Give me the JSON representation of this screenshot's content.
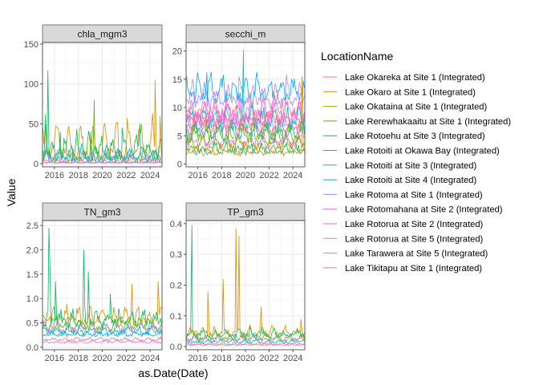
{
  "chart_data": {
    "type": "line",
    "xlabel": "as.Date(Date)",
    "ylabel": "Value",
    "x_range": [
      "2015-01-01",
      "2024-12-31"
    ],
    "x_ticks": [
      "2016",
      "2018",
      "2020",
      "2022",
      "2024"
    ],
    "grid": true,
    "legend": {
      "title": "LocationName",
      "placement": "right",
      "entries": [
        {
          "name": "Lake Okareka at Site 1 (Integrated)",
          "color": "#F8766D"
        },
        {
          "name": "Lake Okaro at Site 1 (Integrated)",
          "color": "#DB8E00"
        },
        {
          "name": "Lake Okataina at Site 1 (Integrated)",
          "color": "#AEA200"
        },
        {
          "name": "Lake Rerewhakaaitu at Site 1 (Integrated)",
          "color": "#64B200"
        },
        {
          "name": "Lake Rotoehu at Site 3 (Integrated)",
          "color": "#00BD5C"
        },
        {
          "name": "Lake Rotoiti at Okawa Bay (Integrated)",
          "color": "#00C1A7"
        },
        {
          "name": "Lake Rotoiti at Site 3 (Integrated)",
          "color": "#00BADE"
        },
        {
          "name": "Lake Rotoiti at Site 4 (Integrated)",
          "color": "#00A6FF"
        },
        {
          "name": "Lake Rotoma at Site 1 (Integrated)",
          "color": "#B385FF"
        },
        {
          "name": "Lake Rotomahana at Site 2 (Integrated)",
          "color": "#EF67EB"
        },
        {
          "name": "Lake Rotorua at Site 2 (Integrated)",
          "color": "#FF63B6"
        },
        {
          "name": "Lake Rotorua at Site 5 (Integrated)",
          "color": "#C77CFF"
        },
        {
          "name": "Lake Tarawera at Site 5 (Integrated)",
          "color": "#E76BF3"
        },
        {
          "name": "Lake Tikitapu at Site 1 (Integrated)",
          "color": "#FF6C91"
        }
      ]
    },
    "panels": [
      {
        "title": "chla_mgm3",
        "ylim": [
          -4,
          152
        ],
        "y_ticks": [
          0,
          50,
          100,
          150
        ],
        "typical": [
          {
            "series": "Lake Okaro at Site 1 (Integrated)",
            "base": 12,
            "amp": 35,
            "noise": 8
          },
          {
            "series": "Lake Rotoehu at Site 3 (Integrated)",
            "base": 8,
            "amp": 22,
            "noise": 6
          },
          {
            "series": "Lake Rerewhakaaitu at Site 1 (Integrated)",
            "base": 5,
            "amp": 10,
            "noise": 4
          },
          {
            "series": "Lake Rotorua at Site 5 (Integrated)",
            "base": 6,
            "amp": 8,
            "noise": 4
          },
          {
            "series": "Lake Rotoiti at Okawa Bay (Integrated)",
            "base": 6,
            "amp": 12,
            "noise": 5
          },
          {
            "series": "Lake Okareka at Site 1 (Integrated)",
            "base": 2,
            "amp": 2,
            "noise": 1
          },
          {
            "series": "Lake Tarawera at Site 5 (Integrated)",
            "base": 1,
            "amp": 1,
            "noise": 0.5
          },
          {
            "series": "Lake Rotoma at Site 1 (Integrated)",
            "base": 1,
            "amp": 1,
            "noise": 0.5
          }
        ],
        "peaks": [
          {
            "series": "Lake Rotoehu at Site 3 (Integrated)",
            "date": "2015-06-15",
            "value": 117
          },
          {
            "series": "Lake Rotoehu at Site 3 (Integrated)",
            "date": "2015-04-01",
            "value": 62
          },
          {
            "series": "Lake Rerewhakaaitu at Site 1 (Integrated)",
            "date": "2019-05-01",
            "value": 80
          },
          {
            "series": "Lake Rerewhakaaitu at Site 1 (Integrated)",
            "date": "2019-01-15",
            "value": 40
          },
          {
            "series": "Lake Rotoehu at Site 3 (Integrated)",
            "date": "2016-07-01",
            "value": 40
          },
          {
            "series": "Lake Okaro at Site 1 (Integrated)",
            "date": "2022-02-01",
            "value": 57
          },
          {
            "series": "Lake Okaro at Site 1 (Integrated)",
            "date": "2024-06-01",
            "value": 105
          },
          {
            "series": "Lake Okaro at Site 1 (Integrated)",
            "date": "2024-11-01",
            "value": 60
          },
          {
            "series": "Lake Rotoehu at Site 3 (Integrated)",
            "date": "2021-09-01",
            "value": 45
          },
          {
            "series": "Lake Rotoehu at Site 3 (Integrated)",
            "date": "2023-03-01",
            "value": 50
          }
        ]
      },
      {
        "title": "secchi_m",
        "ylim": [
          -0.5,
          21.5
        ],
        "y_ticks": [
          0,
          5,
          10,
          15,
          20
        ],
        "typical": [
          {
            "series": "Lake Rotoiti at Site 4 (Integrated)",
            "base": 12,
            "amp": 3,
            "noise": 1.2
          },
          {
            "series": "Lake Rotoma at Site 1 (Integrated)",
            "base": 11,
            "amp": 3,
            "noise": 1.2
          },
          {
            "series": "Lake Rotomahana at Site 2 (Integrated)",
            "base": 8,
            "amp": 3,
            "noise": 1.2
          },
          {
            "series": "Lake Rotorua at Site 2 (Integrated)",
            "base": 8.5,
            "amp": 2.5,
            "noise": 1.2
          },
          {
            "series": "Lake Rotoiti at Site 3 (Integrated)",
            "base": 7,
            "amp": 2.5,
            "noise": 1
          },
          {
            "series": "Lake Tikitapu at Site 1 (Integrated)",
            "base": 7.5,
            "amp": 2,
            "noise": 1
          },
          {
            "series": "Lake Tarawera at Site 5 (Integrated)",
            "base": 6.5,
            "amp": 2,
            "noise": 1
          },
          {
            "series": "Lake Okareka at Site 1 (Integrated)",
            "base": 6,
            "amp": 2,
            "noise": 1
          },
          {
            "series": "Lake Rotoiti at Okawa Bay (Integrated)",
            "base": 5,
            "amp": 2,
            "noise": 1
          },
          {
            "series": "Lake Rerewhakaaitu at Site 1 (Integrated)",
            "base": 4.5,
            "amp": 2,
            "noise": 1
          },
          {
            "series": "Lake Rotorua at Site 5 (Integrated)",
            "base": 3.5,
            "amp": 1.5,
            "noise": 0.8
          },
          {
            "series": "Lake Okataina at Site 1 (Integrated)",
            "base": 3.2,
            "amp": 1.5,
            "noise": 0.8
          },
          {
            "series": "Lake Rotoehu at Site 3 (Integrated)",
            "base": 2.2,
            "amp": 1,
            "noise": 0.6
          },
          {
            "series": "Lake Okaro at Site 1 (Integrated)",
            "base": 2,
            "amp": 1,
            "noise": 0.6
          }
        ],
        "peaks": [
          {
            "series": "Lake Rotoiti at Site 3 (Integrated)",
            "date": "2019-11-01",
            "value": 20.2
          },
          {
            "series": "Lake Okaro at Site 1 (Integrated)",
            "date": "2024-10-01",
            "value": 15.5
          },
          {
            "series": "Lake Rotoiti at Site 4 (Integrated)",
            "date": "2016-10-01",
            "value": 16.2
          }
        ]
      },
      {
        "title": "TN_gm3",
        "ylim": [
          -0.05,
          2.6
        ],
        "y_ticks": [
          0.0,
          0.5,
          1.0,
          1.5,
          2.0,
          2.5
        ],
        "typical": [
          {
            "series": "Lake Okaro at Site 1 (Integrated)",
            "base": 0.55,
            "amp": 0.25,
            "noise": 0.1
          },
          {
            "series": "Lake Rotoehu at Site 3 (Integrated)",
            "base": 0.5,
            "amp": 0.2,
            "noise": 0.1
          },
          {
            "series": "Lake Rerewhakaaitu at Site 1 (Integrated)",
            "base": 0.4,
            "amp": 0.15,
            "noise": 0.08
          },
          {
            "series": "Lake Rotorua at Site 5 (Integrated)",
            "base": 0.35,
            "amp": 0.12,
            "noise": 0.06
          },
          {
            "series": "Lake Rotoiti at Okawa Bay (Integrated)",
            "base": 0.3,
            "amp": 0.1,
            "noise": 0.05
          },
          {
            "series": "Lake Rotoiti at Site 4 (Integrated)",
            "base": 0.25,
            "amp": 0.06,
            "noise": 0.03
          },
          {
            "series": "Lake Okareka at Site 1 (Integrated)",
            "base": 0.15,
            "amp": 0.04,
            "noise": 0.02
          },
          {
            "series": "Lake Tarawera at Site 5 (Integrated)",
            "base": 0.1,
            "amp": 0.03,
            "noise": 0.02
          }
        ],
        "peaks": [
          {
            "series": "Lake Rotoehu at Site 3 (Integrated)",
            "date": "2015-07-15",
            "value": 2.45
          },
          {
            "series": "Lake Rotoehu at Site 3 (Integrated)",
            "date": "2015-08-15",
            "value": 1.7
          },
          {
            "series": "Lake Rotoehu at Site 3 (Integrated)",
            "date": "2018-06-15",
            "value": 2.0
          },
          {
            "series": "Lake Rotoehu at Site 3 (Integrated)",
            "date": "2018-11-01",
            "value": 1.55
          },
          {
            "series": "Lake Okaro at Site 1 (Integrated)",
            "date": "2022-07-01",
            "value": 1.3
          },
          {
            "series": "Lake Okaro at Site 1 (Integrated)",
            "date": "2024-09-01",
            "value": 1.35
          },
          {
            "series": "Lake Rotoehu at Site 3 (Integrated)",
            "date": "2020-09-01",
            "value": 1.1
          },
          {
            "series": "Lake Rotoehu at Site 3 (Integrated)",
            "date": "2016-02-01",
            "value": 1.35
          }
        ]
      },
      {
        "title": "TP_gm3",
        "ylim": [
          -0.01,
          0.41
        ],
        "y_ticks": [
          0.0,
          0.1,
          0.2,
          0.3,
          0.4
        ],
        "typical": [
          {
            "series": "Lake Okaro at Site 1 (Integrated)",
            "base": 0.04,
            "amp": 0.02,
            "noise": 0.012
          },
          {
            "series": "Lake Rotoehu at Site 3 (Integrated)",
            "base": 0.035,
            "amp": 0.015,
            "noise": 0.01
          },
          {
            "series": "Lake Rerewhakaaitu at Site 1 (Integrated)",
            "base": 0.025,
            "amp": 0.01,
            "noise": 0.006
          },
          {
            "series": "Lake Rotorua at Site 5 (Integrated)",
            "base": 0.02,
            "amp": 0.01,
            "noise": 0.006
          },
          {
            "series": "Lake Rotoiti at Okawa Bay (Integrated)",
            "base": 0.015,
            "amp": 0.006,
            "noise": 0.004
          },
          {
            "series": "Lake Okareka at Site 1 (Integrated)",
            "base": 0.008,
            "amp": 0.003,
            "noise": 0.002
          },
          {
            "series": "Lake Rotoma at Site 1 (Integrated)",
            "base": 0.005,
            "amp": 0.002,
            "noise": 0.001
          }
        ],
        "peaks": [
          {
            "series": "Lake Rotoehu at Site 3 (Integrated)",
            "date": "2015-07-01",
            "value": 0.395
          },
          {
            "series": "Lake Okaro at Site 1 (Integrated)",
            "date": "2019-03-15",
            "value": 0.385
          },
          {
            "series": "Lake Okaro at Site 1 (Integrated)",
            "date": "2019-06-15",
            "value": 0.36
          },
          {
            "series": "Lake Okaro at Site 1 (Integrated)",
            "date": "2018-02-15",
            "value": 0.22
          },
          {
            "series": "Lake Okaro at Site 1 (Integrated)",
            "date": "2016-11-01",
            "value": 0.18
          },
          {
            "series": "Lake Okaro at Site 1 (Integrated)",
            "date": "2021-05-01",
            "value": 0.13
          },
          {
            "series": "Lake Okaro at Site 1 (Integrated)",
            "date": "2024-09-01",
            "value": 0.09
          }
        ]
      }
    ]
  }
}
